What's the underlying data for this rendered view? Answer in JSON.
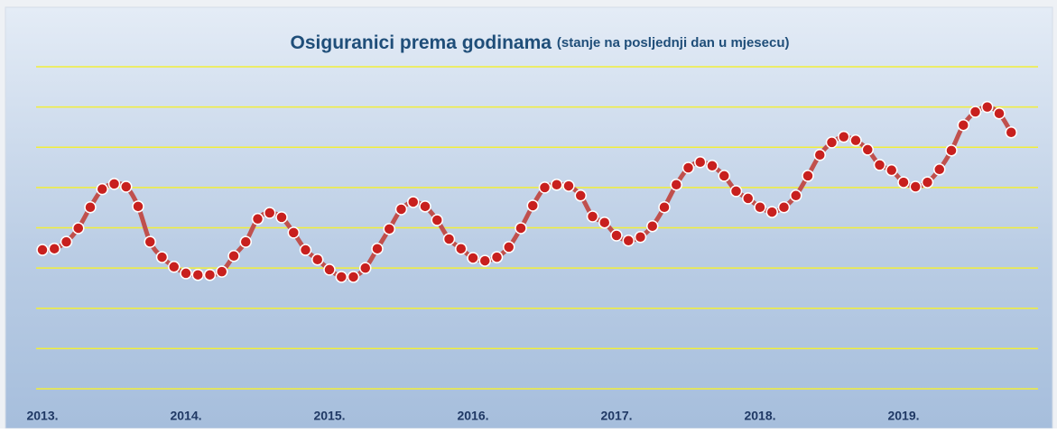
{
  "chart_data": {
    "type": "line",
    "title": "Osiguranici prema godinama",
    "subtitle": "(stanje na posljednji dan u mjesecu)",
    "categories": [
      "2013.",
      null,
      null,
      null,
      null,
      null,
      null,
      null,
      null,
      null,
      null,
      null,
      "2014.",
      null,
      null,
      null,
      null,
      null,
      null,
      null,
      null,
      null,
      null,
      null,
      "2015.",
      null,
      null,
      null,
      null,
      null,
      null,
      null,
      null,
      null,
      null,
      null,
      "2016.",
      null,
      null,
      null,
      null,
      null,
      null,
      null,
      null,
      null,
      null,
      null,
      "2017.",
      null,
      null,
      null,
      null,
      null,
      null,
      null,
      null,
      null,
      null,
      null,
      "2018.",
      null,
      null,
      null,
      null,
      null,
      null,
      null,
      null,
      null,
      null,
      null,
      "2019.",
      null,
      null,
      null,
      null,
      null,
      null,
      null,
      null,
      null
    ],
    "series": [
      {
        "color": "#c0504d",
        "values": [
          3.45,
          3.48,
          3.65,
          3.99,
          4.51,
          4.96,
          5.09,
          5.02,
          4.53,
          3.65,
          3.27,
          3.03,
          2.87,
          2.83,
          2.83,
          2.91,
          3.3,
          3.65,
          4.22,
          4.37,
          4.26,
          3.88,
          3.45,
          3.21,
          2.96,
          2.78,
          2.78,
          3.0,
          3.48,
          3.97,
          4.46,
          4.64,
          4.53,
          4.19,
          3.72,
          3.48,
          3.25,
          3.18,
          3.27,
          3.52,
          3.99,
          4.55,
          5.0,
          5.07,
          5.04,
          4.8,
          4.28,
          4.13,
          3.81,
          3.68,
          3.77,
          4.04,
          4.51,
          5.07,
          5.49,
          5.63,
          5.54,
          5.29,
          4.91,
          4.73,
          4.51,
          4.39,
          4.51,
          4.8,
          5.29,
          5.81,
          6.12,
          6.26,
          6.17,
          5.94,
          5.56,
          5.43,
          5.13,
          5.02,
          5.13,
          5.45,
          5.92,
          6.55,
          6.88,
          7.0,
          6.84,
          6.37
        ]
      }
    ],
    "ylim": [
      0,
      8
    ],
    "yticks": [
      0,
      1,
      2,
      3,
      4,
      5,
      6,
      7,
      8
    ],
    "grid": true
  }
}
